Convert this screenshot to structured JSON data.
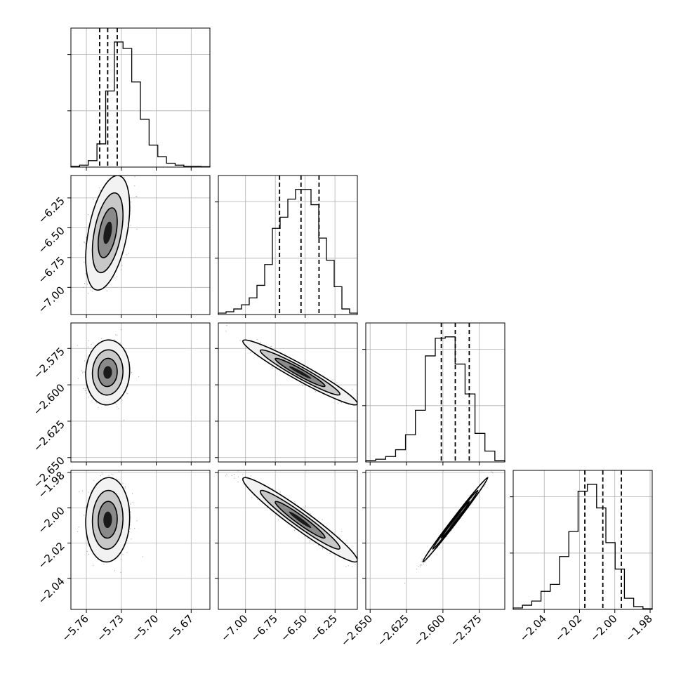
{
  "figure": {
    "type": "corner-plot",
    "grid": true,
    "quantiles": [
      0.16,
      0.5,
      0.84
    ]
  },
  "chart_data": {
    "type": "corner",
    "parameters": [
      {
        "range": [
          -5.7733,
          -5.6539
        ],
        "ticks": [
          -5.76,
          -5.73,
          -5.7,
          -5.67
        ],
        "tick_labels": [
          "−5.76",
          "−5.73",
          "−5.70",
          "−5.67"
        ],
        "quantiles": [
          -5.7486,
          -5.7417,
          -5.7335
        ]
      },
      {
        "range": [
          -7.2278,
          -6.0622
        ],
        "ticks": [
          -7.0,
          -6.75,
          -6.5,
          -6.25
        ],
        "tick_labels": [
          "−7.00",
          "−6.75",
          "−6.50",
          "−6.25"
        ],
        "quantiles": [
          -6.7145,
          -6.5346,
          -6.3835
        ]
      },
      {
        "range": [
          -2.653,
          -2.5575
        ],
        "ticks": [
          -2.65,
          -2.625,
          -2.6,
          -2.575
        ],
        "tick_labels": [
          "−2.650",
          "−2.625",
          "−2.600",
          "−2.575"
        ],
        "quantiles": [
          -2.6011,
          -2.5915,
          -2.5819
        ]
      },
      {
        "range": [
          -2.0576,
          -1.9788
        ],
        "ticks": [
          -2.04,
          -2.02,
          -2.0,
          -1.98
        ],
        "tick_labels": [
          "−2.04",
          "−2.02",
          "−2.00",
          "−1.98"
        ],
        "quantiles": [
          -2.017,
          -2.0068,
          -1.9963
        ]
      }
    ],
    "histograms": [
      {
        "counts": [
          0.5,
          1.5,
          5,
          18,
          59,
          97,
          92,
          66,
          37,
          17,
          8,
          3,
          1.5,
          0.5,
          0.5,
          0.3
        ]
      },
      {
        "counts": [
          1,
          2,
          4,
          7,
          12,
          21,
          36,
          62,
          70,
          83,
          90,
          90,
          79,
          55,
          39,
          20,
          4,
          1
        ]
      },
      {
        "counts": [
          1,
          2,
          4,
          9,
          20,
          38,
          78,
          91,
          92,
          72,
          50,
          21,
          8,
          1
        ]
      },
      {
        "counts": [
          1,
          3,
          6,
          13,
          18,
          38,
          56,
          85,
          90,
          73,
          48,
          29,
          8,
          2,
          0.5
        ]
      }
    ],
    "pairs": [
      {
        "i": 1,
        "j": 0,
        "mean": [
          -5.7417,
          -6.5422
        ],
        "sd": [
          0.0082,
          0.2089
        ],
        "corr": 0.45
      },
      {
        "i": 2,
        "j": 0,
        "mean": [
          -5.7417,
          -2.5915
        ],
        "sd": [
          0.0082,
          0.0097
        ],
        "corr": 0.05
      },
      {
        "i": 2,
        "j": 1,
        "mean": [
          -6.5422,
          -2.5915
        ],
        "sd": [
          0.2089,
          0.0097
        ],
        "corr": -0.96
      },
      {
        "i": 3,
        "j": 0,
        "mean": [
          -5.7417,
          -2.0068
        ],
        "sd": [
          0.0082,
          0.0104
        ],
        "corr": 0.05
      },
      {
        "i": 3,
        "j": 1,
        "mean": [
          -6.5422,
          -2.0068
        ],
        "sd": [
          0.2089,
          0.0104
        ],
        "corr": -0.96
      },
      {
        "i": 3,
        "j": 2,
        "mean": [
          -2.5915,
          -2.0068
        ],
        "sd": [
          0.0097,
          0.0104
        ],
        "corr": 0.995
      }
    ]
  },
  "colors": {
    "line": "#000000",
    "grid": "#b0b0b0",
    "points": "#000000",
    "background": "#ffffff"
  }
}
